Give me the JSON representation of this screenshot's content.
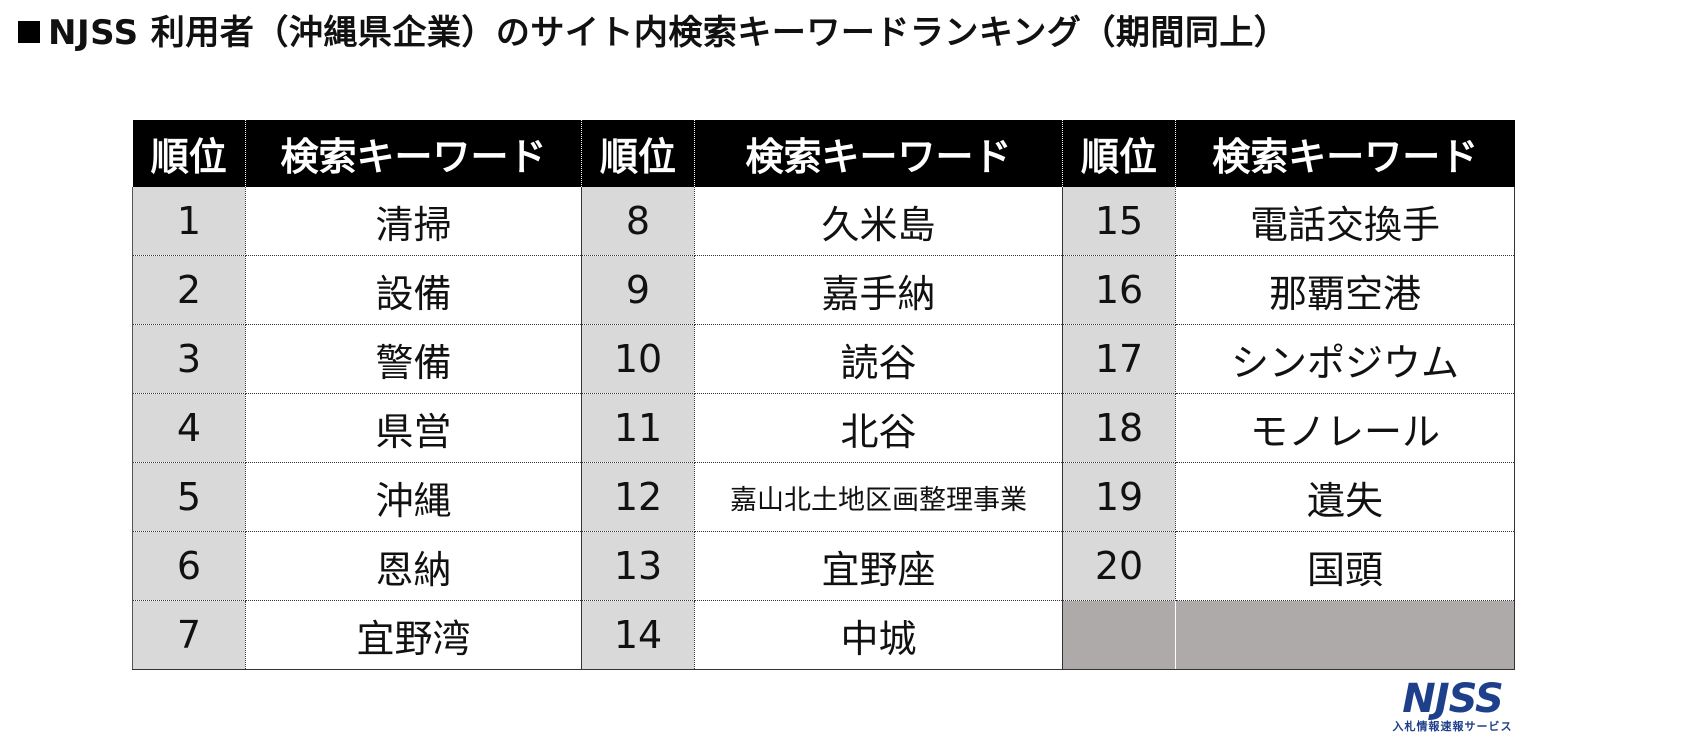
{
  "title": "NJSS 利用者（沖縄県企業）のサイト内検索キーワードランキング（期間同上）",
  "headers": {
    "rank": "順位",
    "keyword": "検索キーワード"
  },
  "columns": [
    {
      "items": [
        {
          "rank": "1",
          "keyword": "清掃"
        },
        {
          "rank": "2",
          "keyword": "設備"
        },
        {
          "rank": "3",
          "keyword": "警備"
        },
        {
          "rank": "4",
          "keyword": "県営"
        },
        {
          "rank": "5",
          "keyword": "沖縄"
        },
        {
          "rank": "6",
          "keyword": "恩納"
        },
        {
          "rank": "7",
          "keyword": "宜野湾"
        }
      ]
    },
    {
      "items": [
        {
          "rank": "8",
          "keyword": "久米島"
        },
        {
          "rank": "9",
          "keyword": "嘉手納"
        },
        {
          "rank": "10",
          "keyword": "読谷"
        },
        {
          "rank": "11",
          "keyword": "北谷"
        },
        {
          "rank": "12",
          "keyword": "嘉山北土地区画整理事業"
        },
        {
          "rank": "13",
          "keyword": "宜野座"
        },
        {
          "rank": "14",
          "keyword": "中城"
        }
      ]
    },
    {
      "items": [
        {
          "rank": "15",
          "keyword": "電話交換手"
        },
        {
          "rank": "16",
          "keyword": "那覇空港"
        },
        {
          "rank": "17",
          "keyword": "シンポジウム"
        },
        {
          "rank": "18",
          "keyword": "モノレール"
        },
        {
          "rank": "19",
          "keyword": "遺失"
        },
        {
          "rank": "20",
          "keyword": "国頭"
        }
      ]
    }
  ],
  "logo": {
    "mark": "NJSS",
    "subtitle": "入札情報速報サービス",
    "color": "#1e3f8a"
  },
  "colors": {
    "header_bg": "#000000",
    "rank_bg": "#d9d9d9",
    "empty_bg": "#aeaaaa"
  }
}
